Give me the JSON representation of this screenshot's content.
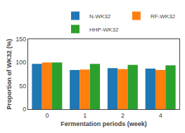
{
  "chart_data": {
    "type": "bar",
    "categories": [
      "0",
      "1",
      "2",
      "4"
    ],
    "series": [
      {
        "name": "N-WK32",
        "values": [
          97,
          84,
          88,
          87
        ]
      },
      {
        "name": "RF-WK32",
        "values": [
          100,
          85,
          86,
          84
        ]
      },
      {
        "name": "HHP-WK32",
        "values": [
          100,
          97,
          95,
          94
        ]
      }
    ],
    "xlabel": "Fermentation periods (week)",
    "ylabel": "Proportion of WK32 (%)",
    "ylim": [
      0,
      150
    ],
    "yticks": [
      0,
      50,
      100,
      150
    ],
    "grid": false,
    "legend": "upper right"
  }
}
